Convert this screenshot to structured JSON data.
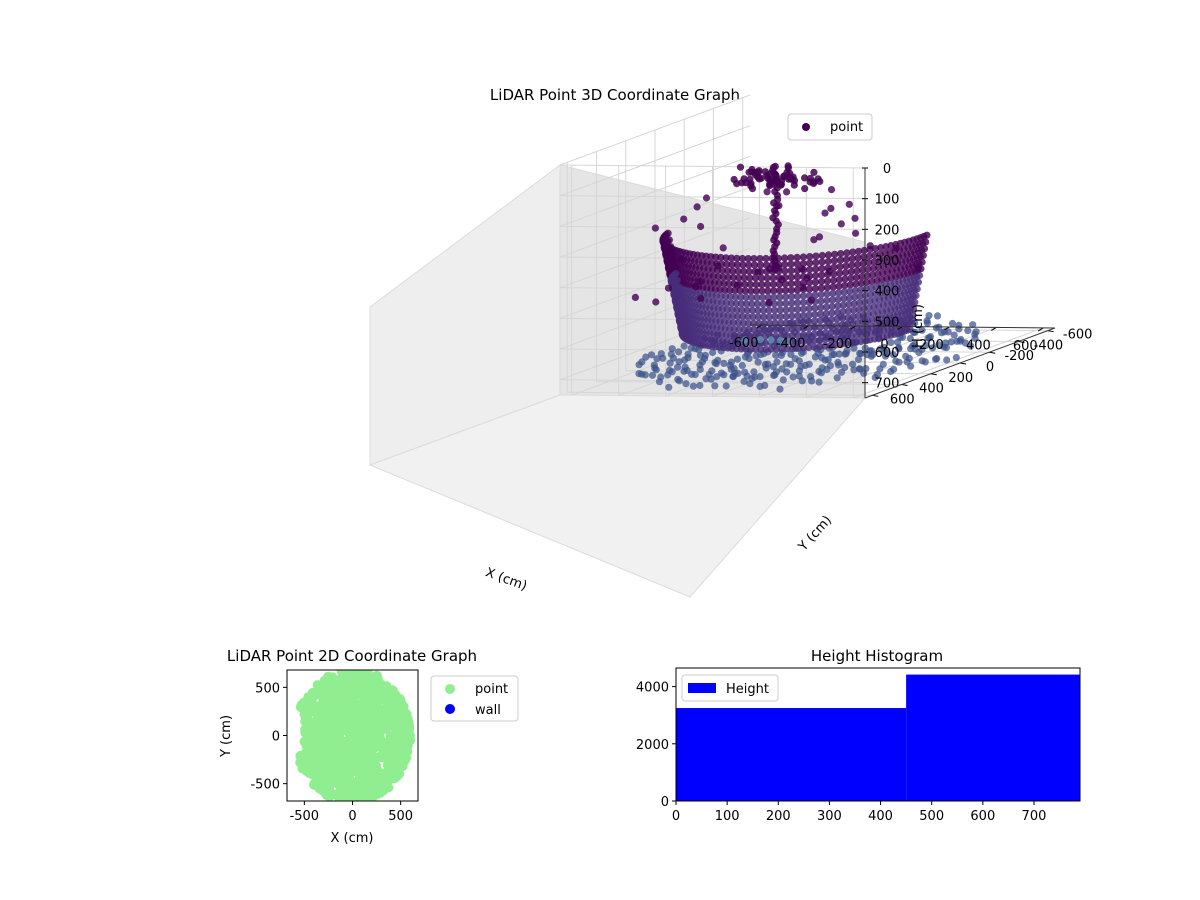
{
  "chart_data": [
    {
      "type": "scatter3d",
      "title": "LiDAR Point 3D Coordinate Graph",
      "xlabel": "X (cm)",
      "ylabel": "Y (cm)",
      "zlabel": "H (cm)",
      "xticks": [
        -600,
        -400,
        -200,
        0,
        200,
        400,
        600
      ],
      "yticks": [
        -600,
        -400,
        -200,
        0,
        200,
        400,
        600
      ],
      "zticks": [
        0,
        100,
        200,
        300,
        400,
        500,
        600,
        700
      ],
      "xlim": [
        -650,
        650
      ],
      "ylim": [
        -650,
        650
      ],
      "zlim": [
        0,
        750
      ],
      "z_inverted": true,
      "grid": true,
      "legend": {
        "entries": [
          "point"
        ],
        "placement": "top-right"
      },
      "series": [
        {
          "name": "point",
          "colors": {
            "high": "#440154",
            "mid": "#472d7b",
            "low": "#3b528b",
            "outlier": "#5b9bb3"
          },
          "description_points": {
            "center_pole": {
              "x": 50,
              "y": 300,
              "h_top": 60,
              "h_bottom": 400
            },
            "wall_arc": {
              "radius": 550,
              "h_top": 300,
              "h_bottom": 600
            },
            "floor": {
              "radius": 600,
              "h": 720
            }
          }
        }
      ]
    },
    {
      "type": "scatter",
      "title": "LiDAR Point 2D Coordinate Graph",
      "xlabel": "X (cm)",
      "ylabel": "Y (cm)",
      "xticks": [
        -500,
        0,
        500
      ],
      "yticks": [
        -500,
        0,
        500
      ],
      "xlim": [
        -680,
        680
      ],
      "ylim": [
        -680,
        680
      ],
      "legend": {
        "entries": [
          "point",
          "wall"
        ],
        "placement": "outside-right"
      },
      "series": [
        {
          "name": "point",
          "color": "#90ee90"
        },
        {
          "name": "wall",
          "color": "#0000ff"
        }
      ]
    },
    {
      "type": "bar",
      "title": "Height Histogram",
      "legend": {
        "entries": [
          "Height"
        ],
        "placement": "top-left"
      },
      "xticks": [
        0,
        100,
        200,
        300,
        400,
        500,
        600,
        700
      ],
      "yticks": [
        0,
        2000,
        4000
      ],
      "xlim": [
        0,
        790
      ],
      "ylim": [
        0,
        4650
      ],
      "series": [
        {
          "name": "Height",
          "color": "#0000ff",
          "bins": [
            {
              "from": 0,
              "to": 450,
              "count": 3250
            },
            {
              "from": 450,
              "to": 790,
              "count": 4420
            }
          ]
        }
      ]
    }
  ]
}
